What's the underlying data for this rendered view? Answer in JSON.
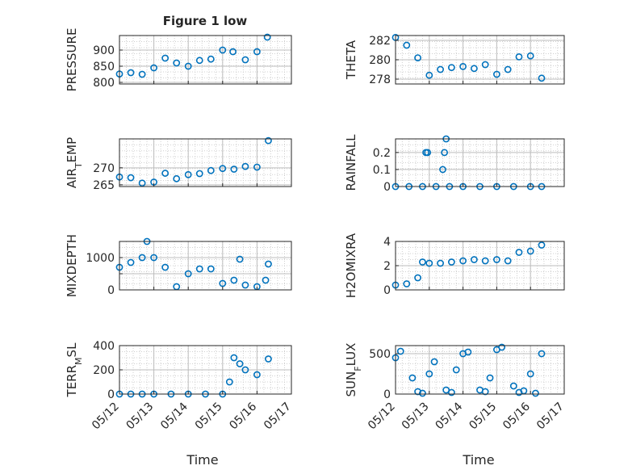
{
  "figure": {
    "title": "Figure 1 low",
    "xlabel": "Time",
    "x_ticks": [
      "05/12",
      "05/13",
      "05/14",
      "05/15",
      "05/16",
      "05/17"
    ],
    "marker_color": "#0072BD",
    "grid": true,
    "marker": "circle"
  },
  "chart_data": [
    {
      "type": "scatter",
      "ylabel": "PRESSURE",
      "xlim": [
        0,
        5
      ],
      "ylim": [
        795,
        945
      ],
      "yticks": [
        800,
        850,
        900
      ],
      "ytick_labels": [
        "800",
        "850",
        "900"
      ],
      "x": [
        0,
        0.33,
        0.66,
        1.0,
        1.33,
        1.66,
        2.0,
        2.33,
        2.66,
        3.0,
        3.3,
        3.66,
        4.0,
        4.3
      ],
      "y": [
        826,
        830,
        825,
        845,
        875,
        860,
        850,
        868,
        872,
        900,
        895,
        870,
        895,
        940
      ]
    },
    {
      "type": "scatter",
      "ylabel": "THETA",
      "xlim": [
        0,
        5
      ],
      "ylim": [
        277.5,
        282.5
      ],
      "yticks": [
        278,
        280,
        282
      ],
      "ytick_labels": [
        "278",
        "280",
        "282"
      ],
      "x": [
        0,
        0.33,
        0.66,
        1.0,
        1.33,
        1.66,
        2.0,
        2.33,
        2.66,
        3.0,
        3.33,
        3.66,
        4.0,
        4.33
      ],
      "y": [
        282.3,
        281.5,
        280.2,
        278.4,
        279.0,
        279.2,
        279.3,
        279.1,
        279.5,
        278.5,
        279.0,
        280.3,
        280.4,
        278.1
      ]
    },
    {
      "type": "scatter",
      "ylabel": "AIR_TEMP",
      "xlim": [
        0,
        5
      ],
      "ylim": [
        264.5,
        278.5
      ],
      "yticks": [
        265,
        270
      ],
      "ytick_labels": [
        "265",
        "270"
      ],
      "x": [
        0,
        0.33,
        0.66,
        1.0,
        1.33,
        1.66,
        2.0,
        2.33,
        2.66,
        3.0,
        3.33,
        3.66,
        4.0,
        4.33
      ],
      "y": [
        267.3,
        267.1,
        265.5,
        265.8,
        268.4,
        266.8,
        268.0,
        268.3,
        269.2,
        269.8,
        269.6,
        270.4,
        270.2,
        278.0
      ]
    },
    {
      "type": "scatter",
      "ylabel": "RAINFALL",
      "xlim": [
        0,
        5
      ],
      "ylim": [
        0,
        0.28
      ],
      "yticks": [
        0,
        0.1,
        0.2
      ],
      "ytick_labels": [
        "0",
        "0.1",
        "0.2"
      ],
      "x": [
        0,
        0.4,
        0.8,
        0.9,
        0.95,
        1.2,
        1.4,
        1.45,
        1.5,
        1.6,
        2.0,
        2.5,
        3.0,
        3.5,
        4.0,
        4.33
      ],
      "y": [
        0,
        0,
        0,
        0.2,
        0.2,
        0,
        0.1,
        0.2,
        0.28,
        0,
        0,
        0,
        0,
        0,
        0,
        0
      ]
    },
    {
      "type": "scatter",
      "ylabel": "MIXDEPTH",
      "xlim": [
        0,
        5
      ],
      "ylim": [
        0,
        1500
      ],
      "yticks": [
        0,
        500,
        1000
      ],
      "ytick_labels": [
        "0",
        "",
        "1000"
      ],
      "x": [
        0,
        0.33,
        0.66,
        0.8,
        1.0,
        1.33,
        1.66,
        2.0,
        2.33,
        2.66,
        3.0,
        3.33,
        3.5,
        3.66,
        4.0,
        4.25,
        4.33
      ],
      "y": [
        700,
        850,
        1000,
        1500,
        1000,
        700,
        100,
        500,
        650,
        650,
        200,
        300,
        950,
        150,
        100,
        300,
        800
      ]
    },
    {
      "type": "scatter",
      "ylabel": "H2OMIXRA",
      "xlim": [
        0,
        5
      ],
      "ylim": [
        0,
        4
      ],
      "yticks": [
        0,
        2,
        4
      ],
      "ytick_labels": [
        "0",
        "2",
        "4"
      ],
      "x": [
        0,
        0.33,
        0.66,
        0.8,
        1.0,
        1.33,
        1.66,
        2.0,
        2.33,
        2.66,
        3.0,
        3.33,
        3.66,
        4.0,
        4.33
      ],
      "y": [
        0.4,
        0.5,
        1.0,
        2.3,
        2.2,
        2.2,
        2.3,
        2.4,
        2.5,
        2.4,
        2.5,
        2.4,
        3.1,
        3.2,
        3.7
      ]
    },
    {
      "type": "scatter",
      "ylabel": "TERR_MSL",
      "xlim": [
        0,
        5
      ],
      "ylim": [
        0,
        400
      ],
      "yticks": [
        0,
        200,
        400
      ],
      "ytick_labels": [
        "0",
        "200",
        "400"
      ],
      "x": [
        0,
        0.33,
        0.66,
        1.0,
        1.5,
        2.0,
        2.5,
        3.0,
        3.2,
        3.33,
        3.5,
        3.66,
        4.0,
        4.33
      ],
      "y": [
        0,
        0,
        0,
        0,
        0,
        0,
        0,
        0,
        100,
        300,
        250,
        200,
        160,
        290
      ]
    },
    {
      "type": "scatter",
      "ylabel": "SUN_FLUX",
      "xlim": [
        0,
        5
      ],
      "ylim": [
        0,
        600
      ],
      "yticks": [
        0,
        500
      ],
      "ytick_labels": [
        "0",
        "500"
      ],
      "x": [
        0,
        0.15,
        0.5,
        0.66,
        0.8,
        1.0,
        1.15,
        1.5,
        1.66,
        1.8,
        2.0,
        2.15,
        2.5,
        2.66,
        2.8,
        3.0,
        3.15,
        3.5,
        3.66,
        3.8,
        4.0,
        4.15,
        4.33
      ],
      "y": [
        450,
        530,
        200,
        30,
        10,
        250,
        400,
        50,
        20,
        300,
        500,
        520,
        50,
        30,
        200,
        550,
        580,
        100,
        20,
        40,
        250,
        10,
        500
      ]
    }
  ]
}
